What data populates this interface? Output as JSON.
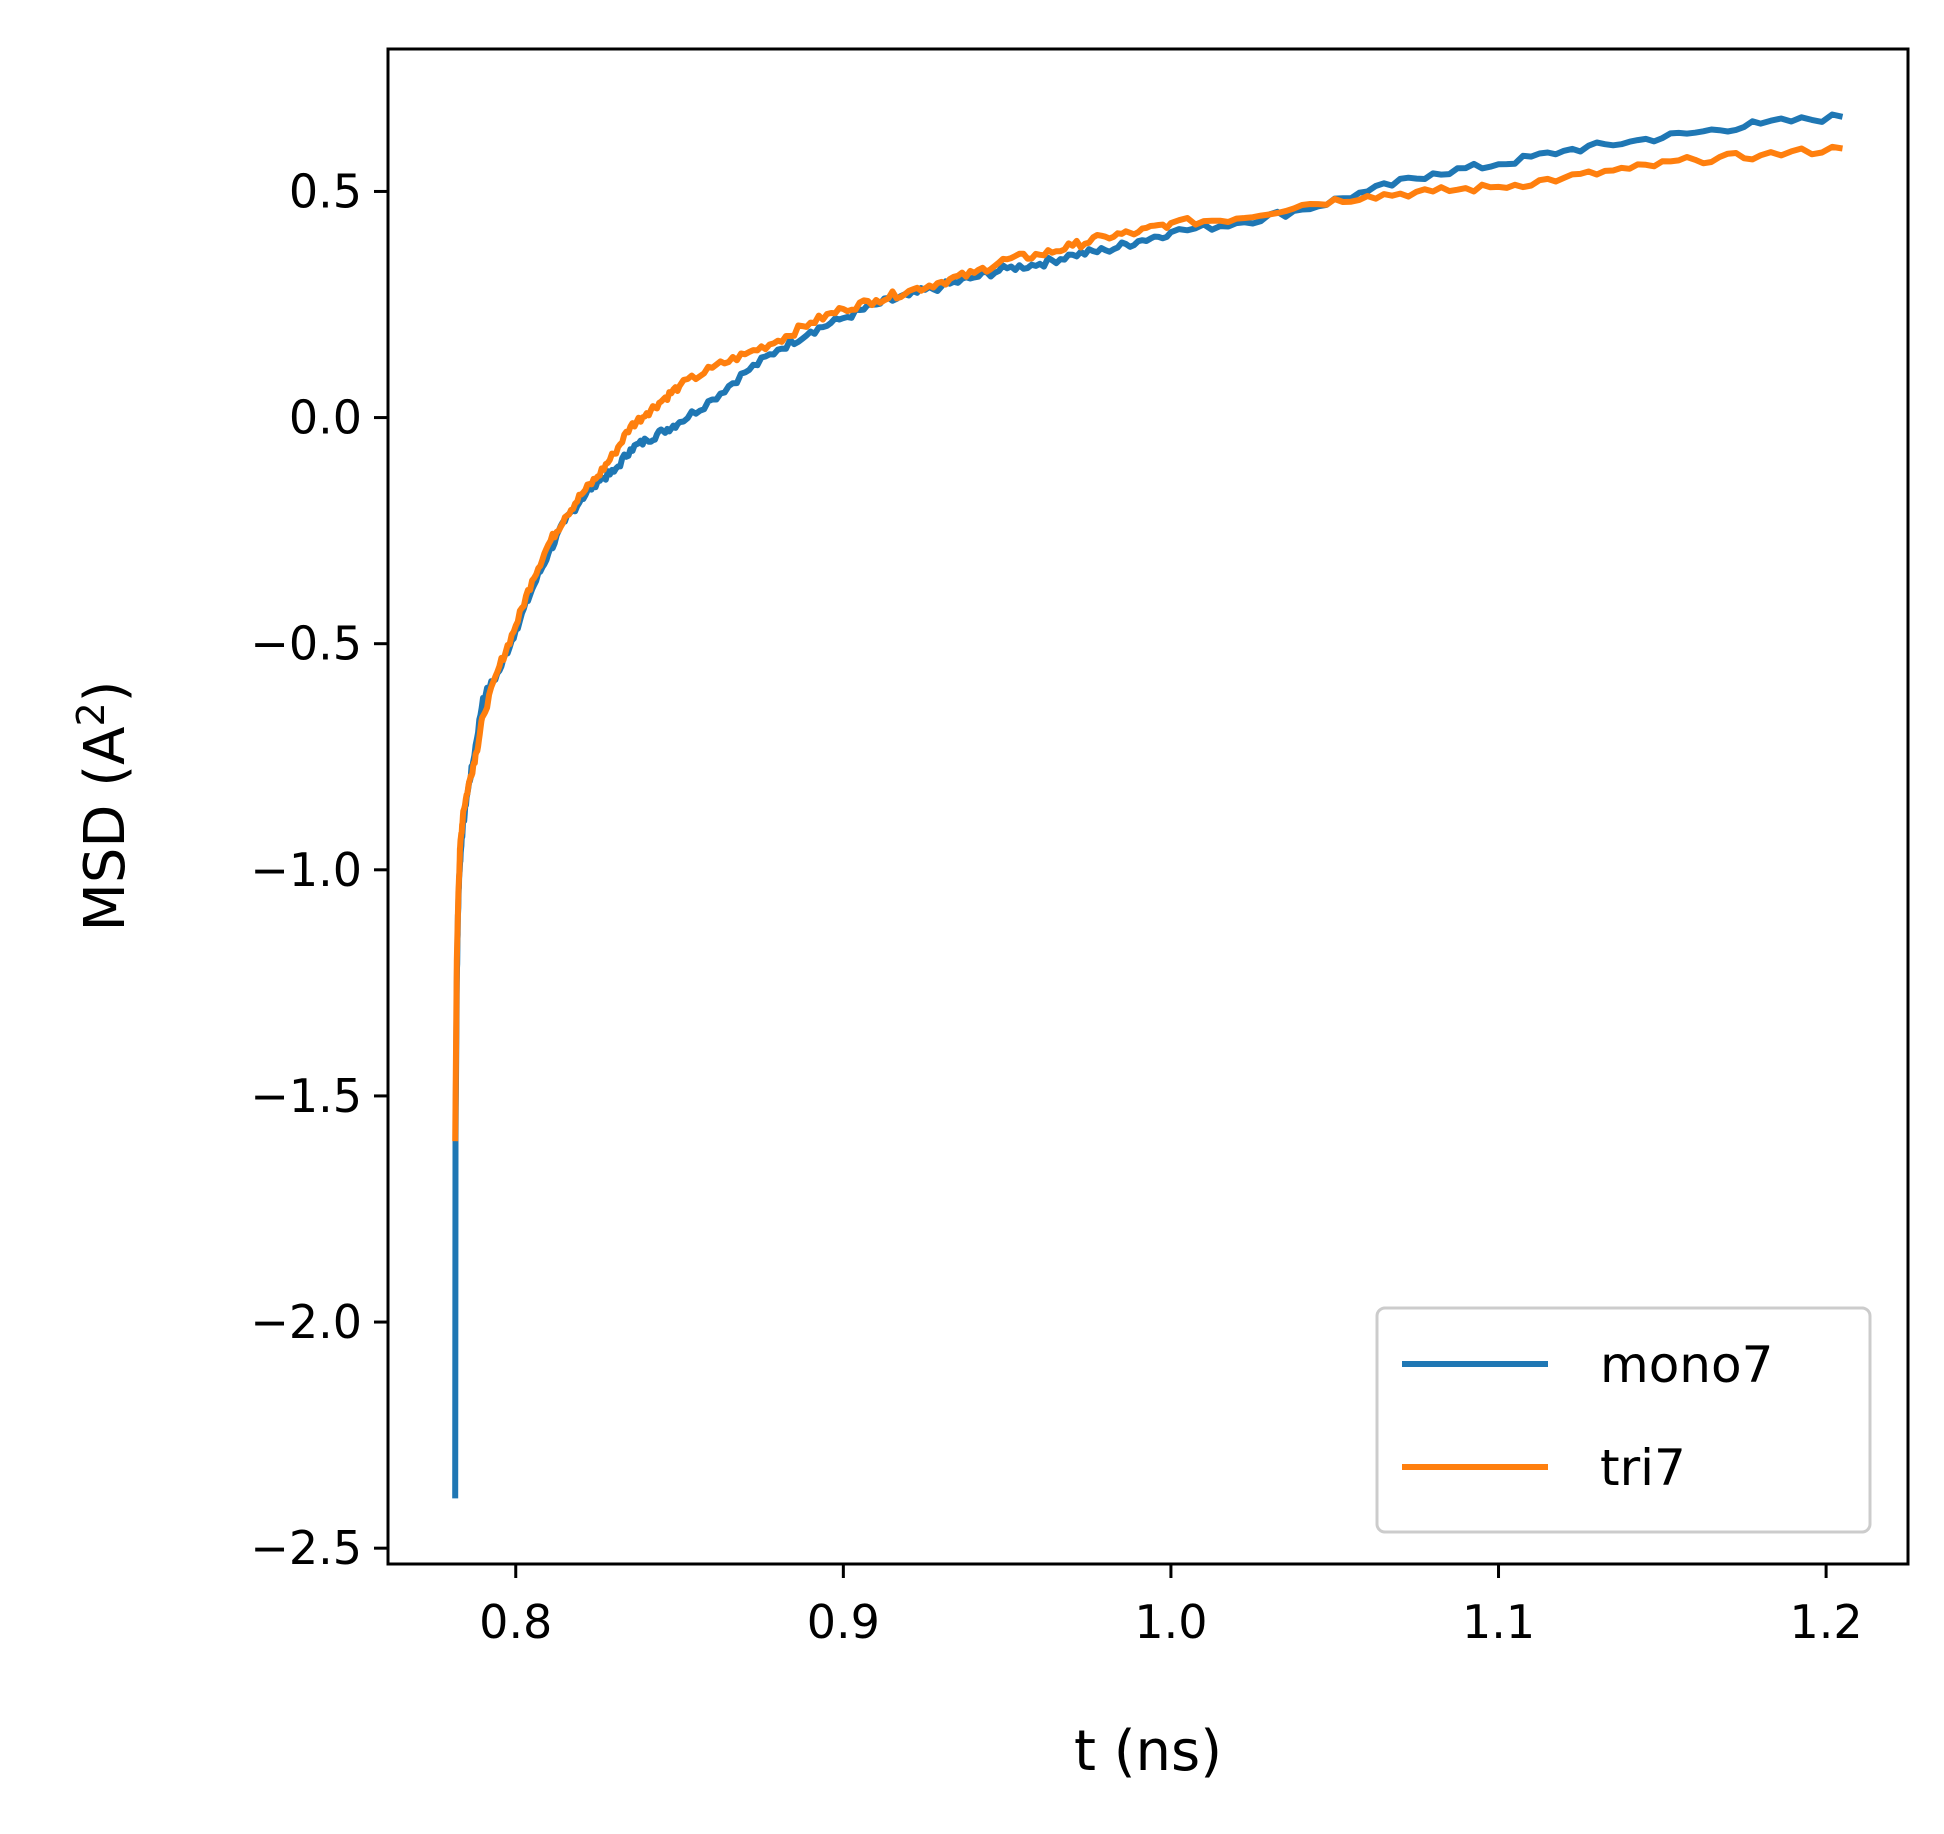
{
  "chart_data": {
    "type": "line",
    "xlabel": "t (ns)",
    "ylabel_main": "MSD (A",
    "ylabel_sup": "2",
    "ylabel_close": ")",
    "xlim": [
      0.761,
      1.225
    ],
    "ylim": [
      -2.535,
      0.815
    ],
    "xticks": [
      {
        "value": 0.8,
        "label": "0.8"
      },
      {
        "value": 0.9,
        "label": "0.9"
      },
      {
        "value": 1.0,
        "label": "1.0"
      },
      {
        "value": 1.1,
        "label": "1.1"
      },
      {
        "value": 1.2,
        "label": "1.2"
      }
    ],
    "yticks": [
      {
        "value": 0.5,
        "label": "0.5"
      },
      {
        "value": 0.0,
        "label": "0.0"
      },
      {
        "value": -0.5,
        "label": "−0.5"
      },
      {
        "value": -1.0,
        "label": "−1.0"
      },
      {
        "value": -1.5,
        "label": "−1.5"
      },
      {
        "value": -2.0,
        "label": "−2.0"
      },
      {
        "value": -2.5,
        "label": "−2.5"
      }
    ],
    "grid": false,
    "legend_position": "lower-right",
    "series": [
      {
        "name": "mono7",
        "color": "#1f77b4",
        "x": [
          0.7815,
          0.7816,
          0.782,
          0.7823,
          0.7827,
          0.7835,
          0.785,
          0.787,
          0.79,
          0.795,
          0.8,
          0.805,
          0.81,
          0.815,
          0.82,
          0.825,
          0.83,
          0.835,
          0.84,
          0.845,
          0.85,
          0.86,
          0.87,
          0.88,
          0.89,
          0.9,
          0.91,
          0.92,
          0.93,
          0.94,
          0.95,
          0.96,
          0.97,
          0.98,
          0.99,
          1.0,
          1.02,
          1.04,
          1.06,
          1.08,
          1.1,
          1.12,
          1.14,
          1.16,
          1.18,
          1.205
        ],
        "y": [
          -2.39,
          -1.6,
          -1.25,
          -1.12,
          -1.02,
          -0.93,
          -0.84,
          -0.76,
          -0.62,
          -0.56,
          -0.47,
          -0.38,
          -0.3,
          -0.23,
          -0.18,
          -0.14,
          -0.12,
          -0.07,
          -0.05,
          -0.03,
          -0.01,
          0.04,
          0.1,
          0.15,
          0.19,
          0.22,
          0.25,
          0.27,
          0.29,
          0.31,
          0.33,
          0.34,
          0.36,
          0.37,
          0.39,
          0.41,
          0.43,
          0.46,
          0.5,
          0.54,
          0.56,
          0.59,
          0.61,
          0.63,
          0.65,
          0.665
        ]
      },
      {
        "name": "tri7",
        "color": "#ff7f0e",
        "x": [
          0.7815,
          0.782,
          0.7825,
          0.783,
          0.784,
          0.786,
          0.788,
          0.79,
          0.795,
          0.8,
          0.805,
          0.81,
          0.815,
          0.82,
          0.825,
          0.83,
          0.835,
          0.84,
          0.845,
          0.85,
          0.86,
          0.87,
          0.88,
          0.89,
          0.9,
          0.91,
          0.92,
          0.93,
          0.94,
          0.95,
          0.96,
          0.97,
          0.98,
          0.99,
          1.0,
          1.02,
          1.04,
          1.06,
          1.08,
          1.1,
          1.12,
          1.14,
          1.16,
          1.18,
          1.205
        ],
        "y": [
          -1.6,
          -1.2,
          -1.05,
          -0.95,
          -0.87,
          -0.8,
          -0.74,
          -0.66,
          -0.55,
          -0.46,
          -0.36,
          -0.28,
          -0.22,
          -0.17,
          -0.13,
          -0.08,
          -0.02,
          0.01,
          0.04,
          0.07,
          0.11,
          0.14,
          0.17,
          0.21,
          0.24,
          0.26,
          0.28,
          0.3,
          0.32,
          0.35,
          0.36,
          0.38,
          0.4,
          0.41,
          0.43,
          0.44,
          0.47,
          0.49,
          0.5,
          0.51,
          0.53,
          0.55,
          0.57,
          0.58,
          0.595
        ]
      }
    ]
  }
}
